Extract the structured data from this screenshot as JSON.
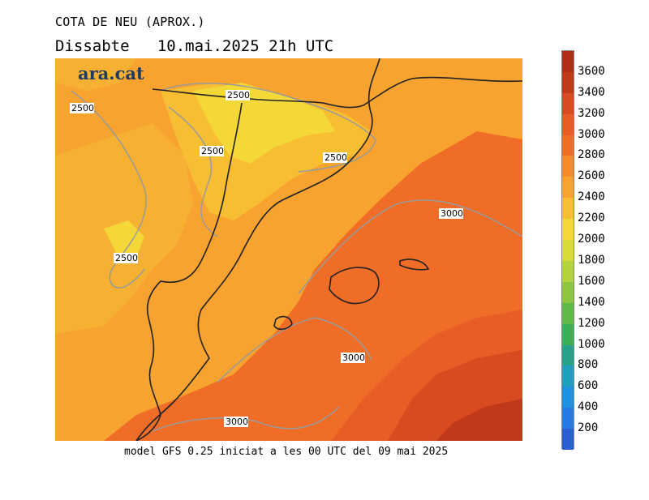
{
  "title": "COTA DE NEU (APROX.)",
  "subtitle": "Dissabte   10.mai.2025 21h UTC",
  "footer": "model GFS 0.25 iniciat a les 00 UTC del 09 mai 2025",
  "logo": "ara.cat",
  "contour_labels": [
    "2500",
    "2500",
    "2500",
    "2500",
    "2500",
    "3000",
    "3000",
    "3000"
  ],
  "colorbar": {
    "labels": [
      "3600",
      "3400",
      "3200",
      "3000",
      "2800",
      "2600",
      "2400",
      "2200",
      "2000",
      "1800",
      "1600",
      "1400",
      "1200",
      "1000",
      "800",
      "600",
      "400",
      "200"
    ],
    "colors": [
      "#c0391b",
      "#d84a20",
      "#e85c25",
      "#f06d28",
      "#f58a2c",
      "#f8a32f",
      "#f7bd33",
      "#f4d838",
      "#d8dc3b",
      "#b3d23c",
      "#8cc63f",
      "#5fba47",
      "#3cae55",
      "#26a38a",
      "#1fa0bf",
      "#1e92e0",
      "#2779e3",
      "#2a5fd1"
    ]
  },
  "colors": {
    "land_outline": "#222222",
    "contour": "#9a9a9a"
  }
}
